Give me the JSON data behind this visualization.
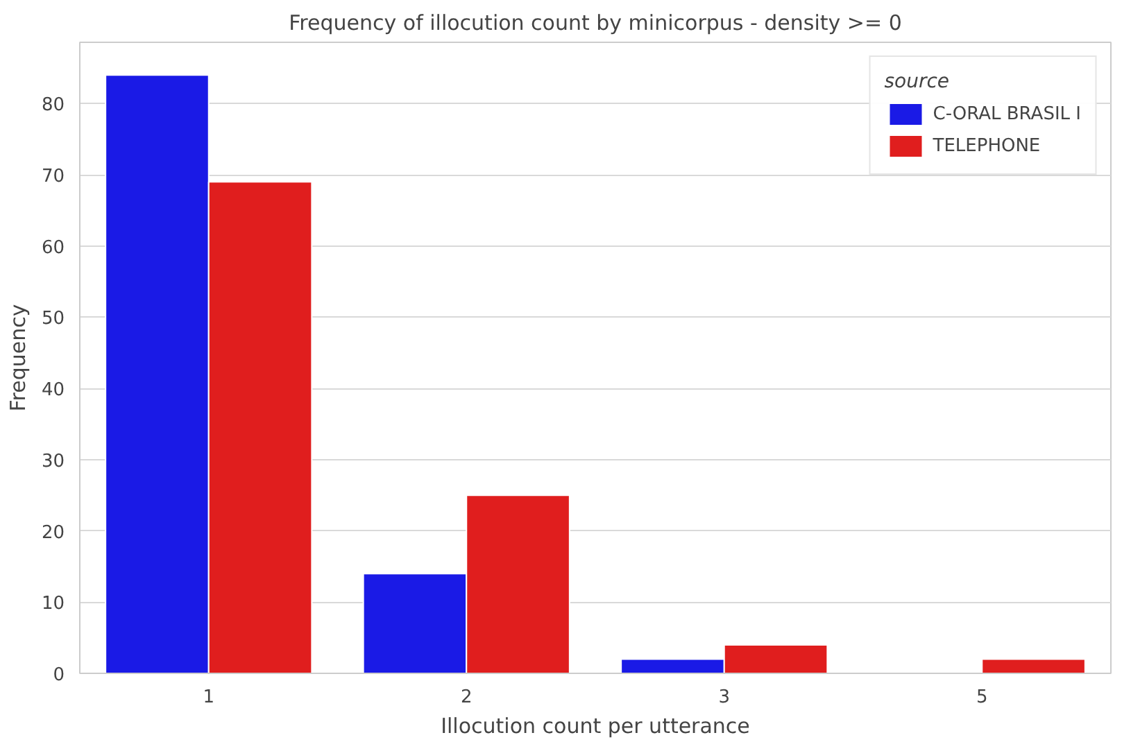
{
  "chart_data": {
    "type": "bar",
    "title": "Frequency of illocution count by minicorpus - density >= 0",
    "xlabel": "Illocution count per utterance",
    "ylabel": "Frequency",
    "legend_title": "source",
    "categories": [
      "1",
      "2",
      "3",
      "5"
    ],
    "series": [
      {
        "name": "C-ORAL BRASIL I",
        "color": "#1a1ae6",
        "values": [
          84,
          14,
          2,
          null
        ]
      },
      {
        "name": "TELEPHONE",
        "color": "#e01e1e",
        "values": [
          69,
          25,
          4,
          2
        ]
      }
    ],
    "ylim": [
      0,
      88.6
    ],
    "yticks": [
      0,
      10,
      20,
      30,
      40,
      50,
      60,
      70,
      80
    ],
    "grid": "y",
    "legend": "top right"
  }
}
